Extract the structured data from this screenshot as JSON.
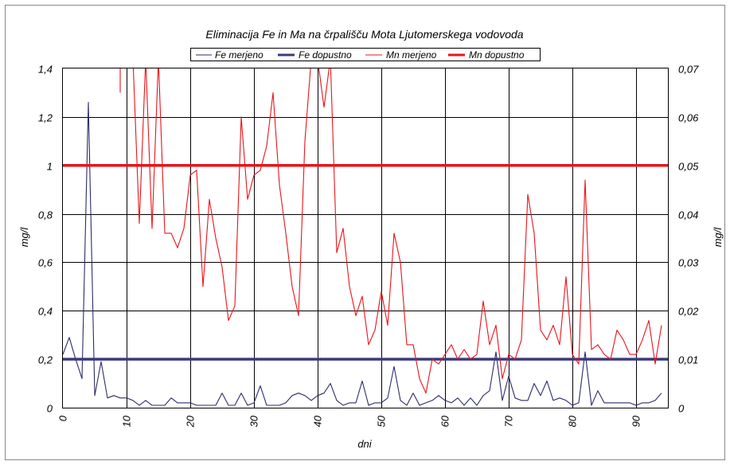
{
  "chart_data": {
    "type": "line",
    "title": "Eliminacija Fe in Ma na črpališču Mota Ljutomerskega vodovoda",
    "xlabel": "dni",
    "ylabel_left": "mg/l",
    "ylabel_right": "mg/l",
    "xlim": [
      0,
      95
    ],
    "ylim_left": [
      0,
      1.4
    ],
    "ylim_right": [
      0,
      0.07
    ],
    "x_ticks": [
      0,
      10,
      20,
      30,
      40,
      50,
      60,
      70,
      80,
      90
    ],
    "y_left_ticks": [
      0,
      0.2,
      0.4,
      0.6,
      0.8,
      1,
      1.2,
      1.4
    ],
    "y_left_tick_labels": [
      "0",
      "0,2",
      "0,4",
      "0,6",
      "0,8",
      "1",
      "1,2",
      "1,4"
    ],
    "y_right_ticks": [
      0,
      0.01,
      0.02,
      0.03,
      0.04,
      0.05,
      0.06,
      0.07
    ],
    "y_right_tick_labels": [
      "0",
      "0,01",
      "0,02",
      "0,03",
      "0,04",
      "0,05",
      "0,06",
      "0,07"
    ],
    "grid": true,
    "legend_position": "top",
    "series": [
      {
        "name": "Fe merjeno",
        "axis": "left",
        "color": "#2b2b6b",
        "style": "thin",
        "x": [
          0,
          1,
          2,
          3,
          4,
          5,
          6,
          7,
          8,
          9,
          10,
          11,
          12,
          13,
          14,
          15,
          16,
          17,
          18,
          19,
          20,
          21,
          22,
          23,
          24,
          25,
          26,
          27,
          28,
          29,
          30,
          31,
          32,
          33,
          34,
          35,
          36,
          37,
          38,
          39,
          40,
          41,
          42,
          43,
          44,
          45,
          46,
          47,
          48,
          49,
          50,
          51,
          52,
          53,
          54,
          55,
          56,
          57,
          58,
          59,
          60,
          61,
          62,
          63,
          64,
          65,
          66,
          67,
          68,
          69,
          70,
          71,
          72,
          73,
          74,
          75,
          76,
          77,
          78,
          79,
          80,
          81,
          82,
          83,
          84,
          85,
          86,
          87,
          88,
          89,
          90,
          91,
          92,
          93,
          94
        ],
        "y": [
          0.22,
          0.29,
          0.2,
          0.12,
          1.26,
          0.05,
          0.19,
          0.04,
          0.05,
          0.04,
          0.04,
          0.03,
          0.01,
          0.03,
          0.01,
          0.01,
          0.01,
          0.04,
          0.02,
          0.02,
          0.02,
          0.01,
          0.01,
          0.01,
          0.01,
          0.06,
          0.01,
          0.01,
          0.06,
          0.01,
          0.02,
          0.09,
          0.01,
          0.01,
          0.01,
          0.02,
          0.05,
          0.06,
          0.05,
          0.03,
          0.05,
          0.06,
          0.1,
          0.03,
          0.01,
          0.02,
          0.02,
          0.11,
          0.01,
          0.02,
          0.02,
          0.04,
          0.17,
          0.03,
          0.01,
          0.06,
          0.01,
          0.02,
          0.03,
          0.05,
          0.03,
          0.02,
          0.04,
          0.01,
          0.04,
          0.01,
          0.05,
          0.07,
          0.23,
          0.03,
          0.13,
          0.04,
          0.03,
          0.03,
          0.1,
          0.05,
          0.11,
          0.03,
          0.04,
          0.03,
          0.01,
          0.02,
          0.23,
          0.01,
          0.07,
          0.02,
          0.02,
          0.02,
          0.02,
          0.02,
          0.01,
          0.02,
          0.02,
          0.03,
          0.06
        ]
      },
      {
        "name": "Fe dopustno",
        "axis": "left",
        "color": "#3a3a80",
        "style": "thick",
        "x": [
          0,
          95
        ],
        "y": [
          0.2,
          0.2
        ]
      },
      {
        "name": "Mn merjeno",
        "axis": "right",
        "color": "#e8141a",
        "style": "thin",
        "x": [
          9,
          9,
          10,
          11,
          12,
          13,
          14,
          15,
          16,
          17,
          18,
          19,
          20,
          21,
          22,
          23,
          24,
          25,
          26,
          27,
          28,
          29,
          30,
          31,
          32,
          33,
          34,
          35,
          36,
          37,
          38,
          39,
          40,
          41,
          42,
          43,
          44,
          45,
          46,
          47,
          48,
          49,
          50,
          51,
          52,
          53,
          54,
          55,
          56,
          57,
          58,
          59,
          60,
          61,
          62,
          63,
          64,
          65,
          66,
          67,
          68,
          69,
          70,
          71,
          72,
          73,
          74,
          75,
          76,
          77,
          78,
          79,
          80,
          81,
          82,
          83,
          84,
          85,
          86,
          87,
          88,
          89,
          90,
          91,
          92,
          93,
          94
        ],
        "y": [
          0.065,
          0.072,
          0.072,
          0.072,
          0.038,
          0.072,
          0.037,
          0.072,
          0.036,
          0.036,
          0.033,
          0.037,
          0.048,
          0.049,
          0.025,
          0.043,
          0.035,
          0.029,
          0.018,
          0.021,
          0.06,
          0.043,
          0.048,
          0.049,
          0.054,
          0.065,
          0.046,
          0.036,
          0.025,
          0.019,
          0.055,
          0.072,
          0.072,
          0.062,
          0.072,
          0.032,
          0.037,
          0.025,
          0.019,
          0.023,
          0.013,
          0.016,
          0.024,
          0.017,
          0.036,
          0.03,
          0.013,
          0.013,
          0.006,
          0.003,
          0.01,
          0.009,
          0.011,
          0.013,
          0.01,
          0.012,
          0.01,
          0.011,
          0.022,
          0.013,
          0.017,
          0.006,
          0.011,
          0.01,
          0.014,
          0.044,
          0.036,
          0.016,
          0.014,
          0.017,
          0.013,
          0.027,
          0.011,
          0.009,
          0.047,
          0.012,
          0.013,
          0.011,
          0.01,
          0.016,
          0.014,
          0.011,
          0.011,
          0.014,
          0.018,
          0.009,
          0.017
        ]
      },
      {
        "name": "Mn dopustno",
        "axis": "right",
        "color": "#e8141a",
        "style": "thick",
        "x": [
          0,
          95
        ],
        "y": [
          0.05,
          0.05
        ]
      }
    ]
  }
}
